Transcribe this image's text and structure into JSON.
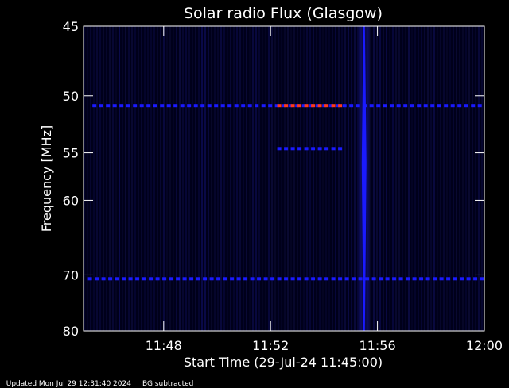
{
  "chart_data": {
    "type": "heatmap",
    "title": "Solar radio Flux (Glasgow)",
    "xlabel": "Start Time (29-Jul-24 11:45:00)",
    "ylabel": "Frequency [MHz]",
    "xlim": [
      "11:45",
      "12:00"
    ],
    "ylim": [
      45,
      80
    ],
    "y_tick_labels": [
      "45",
      "50",
      "55",
      "60",
      "70",
      "80"
    ],
    "y_ticks": [
      45,
      50,
      55,
      60,
      70,
      80
    ],
    "x_tick_labels": [
      "11:48",
      "11:52",
      "11:56",
      "12:00"
    ],
    "x_ticks": [
      "11:48",
      "11:52",
      "11:56",
      "12:00"
    ],
    "background": "BG subtracted",
    "colors": {
      "background": "#000000",
      "low": "#00002a",
      "mid": "#1a1aff",
      "high": "#ff3a1a",
      "axis": "#ffffff"
    },
    "features": [
      {
        "kind": "spike",
        "time": "11:55:30",
        "freq_range": [
          45,
          80
        ],
        "level": "high"
      },
      {
        "kind": "band",
        "freq": 50.8,
        "time_range": [
          "11:45:20",
          "12:00"
        ],
        "level": "medium"
      },
      {
        "kind": "band",
        "freq": 50.8,
        "time_range": [
          "11:52:15",
          "11:54:40"
        ],
        "level": "strong"
      },
      {
        "kind": "band",
        "freq": 54.6,
        "time_range": [
          "11:52:15",
          "11:54:40"
        ],
        "level": "medium"
      },
      {
        "kind": "band",
        "freq": 70.6,
        "time_range": [
          "11:45:10",
          "12:00"
        ],
        "level": "medium"
      }
    ]
  },
  "footer": {
    "updated": "Updated Mon Jul 29 12:31:40 2024",
    "bg_note": "BG subtracted"
  }
}
